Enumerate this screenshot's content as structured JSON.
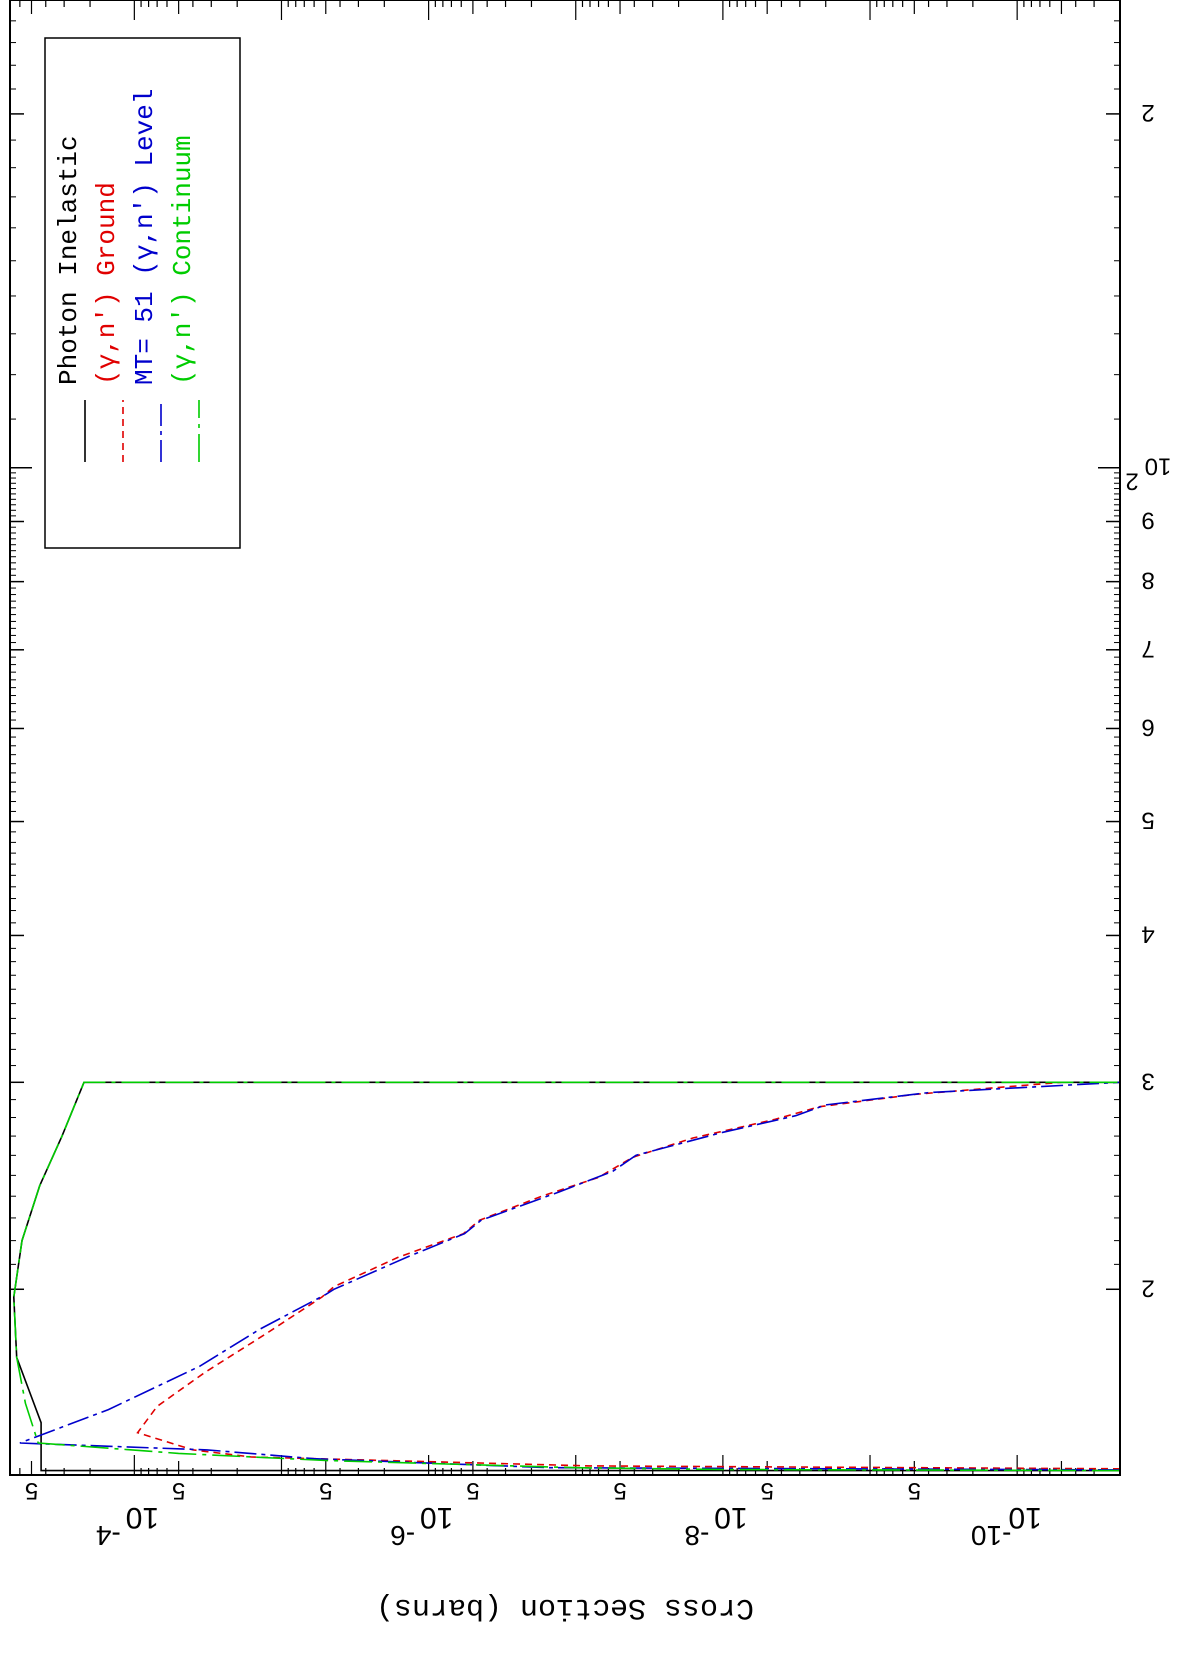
{
  "chart_data": {
    "type": "line",
    "xlabel": "",
    "ylabel": "Cross Section (barns)",
    "xscale": "log",
    "yscale": "log",
    "xlim": [
      13.9,
      250
    ],
    "ylim": [
      2e-11,
      0.0007
    ],
    "grid": false,
    "legend_position": "upper-right",
    "x_ticks": [
      {
        "value": 20,
        "label": "2"
      },
      {
        "value": 30,
        "label": "3"
      },
      {
        "value": 40,
        "label": "4"
      },
      {
        "value": 50,
        "label": "5"
      },
      {
        "value": 60,
        "label": "6"
      },
      {
        "value": 70,
        "label": "7"
      },
      {
        "value": 80,
        "label": "8"
      },
      {
        "value": 90,
        "label": "9"
      },
      {
        "value": 100,
        "label": "10",
        "exp": "2"
      },
      {
        "value": 200,
        "label": "2"
      }
    ],
    "y_ticks": [
      {
        "value": 0.0005,
        "label": "5"
      },
      {
        "value": 0.0001,
        "label": "10",
        "exp": "-4"
      },
      {
        "value": 5e-05,
        "label": "5"
      },
      {
        "value": 5e-06,
        "label": "5"
      },
      {
        "value": 1e-06,
        "label": "10",
        "exp": "-6"
      },
      {
        "value": 5e-07,
        "label": "5"
      },
      {
        "value": 5e-08,
        "label": "5"
      },
      {
        "value": 1e-08,
        "label": "10",
        "exp": "-8"
      },
      {
        "value": 5e-09,
        "label": "5"
      },
      {
        "value": 5e-10,
        "label": "5"
      },
      {
        "value": 1e-10,
        "label": "10",
        "exp": "-10"
      }
    ],
    "series": [
      {
        "name": "Photon Inelastic",
        "color": "#000000",
        "dash": "solid",
        "points": [
          [
            14.02,
            2e-11
          ],
          [
            14.02,
            0.00043
          ],
          [
            15.4,
            0.00043
          ],
          [
            17.5,
            0.00063
          ],
          [
            19.7,
            0.00066
          ],
          [
            22,
            0.00058
          ],
          [
            24.5,
            0.00044
          ],
          [
            27,
            0.00031
          ],
          [
            30,
            0.00022
          ],
          [
            30,
            2e-11
          ]
        ]
      },
      {
        "name": "(γ,n') Ground",
        "color": "#e00000",
        "dash": "7,5",
        "points": [
          [
            14.07,
            2e-11
          ],
          [
            14.15,
            8e-08
          ],
          [
            14.4,
            1.6e-05
          ],
          [
            14.6,
            4e-05
          ],
          [
            15.1,
            9.5e-05
          ],
          [
            15.9,
            7e-05
          ],
          [
            17,
            3.3e-05
          ],
          [
            18.3,
            1.3e-05
          ],
          [
            19.7,
            5.3e-06
          ],
          [
            20.1,
            4.4e-06
          ],
          [
            21.3,
            1.6e-06
          ],
          [
            22.3,
            5.8e-07
          ],
          [
            22.9,
            4.5e-07
          ],
          [
            24,
            1.7e-07
          ],
          [
            24.9,
            7e-08
          ],
          [
            25.9,
            4.1e-08
          ],
          [
            26.9,
            1.6e-08
          ],
          [
            27.9,
            4.4e-09
          ],
          [
            28.6,
            2.2e-09
          ],
          [
            29.3,
            5e-10
          ],
          [
            30,
            5e-11
          ]
        ]
      },
      {
        "name": "MT= 51 (γ,n') Level",
        "color": "#0000cc",
        "dash": "22,5,4,5",
        "points": [
          [
            14.04,
            2e-11
          ],
          [
            14.1,
            1.5e-07
          ],
          [
            14.35,
            6e-06
          ],
          [
            14.6,
            3.2e-05
          ],
          [
            14.8,
            0.0006
          ],
          [
            15.8,
            0.00015
          ],
          [
            17.2,
            3.6e-05
          ],
          [
            18.5,
            1.4e-05
          ],
          [
            19.8,
            5e-06
          ],
          [
            20,
            4.4e-06
          ],
          [
            21.3,
            1.4e-06
          ],
          [
            22.3,
            5.7e-07
          ],
          [
            22.9,
            4.4e-07
          ],
          [
            24.2,
            1.3e-07
          ],
          [
            25.2,
            5.6e-08
          ],
          [
            26,
            3.9e-08
          ],
          [
            27.2,
            1e-08
          ],
          [
            28.1,
            3.2e-09
          ],
          [
            28.7,
            2e-09
          ],
          [
            29.4,
            4e-10
          ],
          [
            30,
            2e-11
          ]
        ]
      },
      {
        "name": "(γ,n') Continuum",
        "color": "#00cc00",
        "dash": "28,6,4,6",
        "points": [
          [
            14.02,
            2e-11
          ],
          [
            14.05,
            1e-08
          ],
          [
            14.1,
            1e-07
          ],
          [
            14.3,
            5e-06
          ],
          [
            14.5,
            5e-05
          ],
          [
            14.8,
            0.00045
          ],
          [
            16,
            0.00055
          ],
          [
            17.5,
            0.00063
          ],
          [
            19.7,
            0.00066
          ],
          [
            22,
            0.00058
          ],
          [
            24.5,
            0.00044
          ],
          [
            27,
            0.00031
          ],
          [
            30,
            0.00022
          ],
          [
            30,
            2e-11
          ]
        ]
      }
    ]
  }
}
